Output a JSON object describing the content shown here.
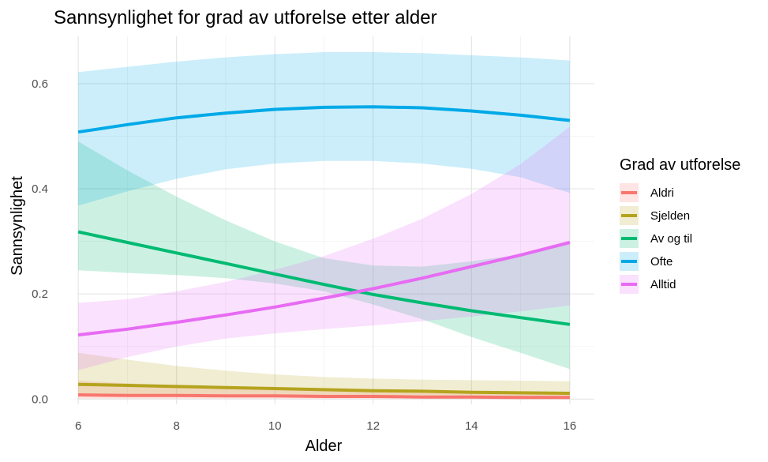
{
  "chart_data": {
    "type": "line",
    "title": "Sannsynlighet for grad av utforelse etter alder",
    "xlabel": "Alder",
    "ylabel": "Sannsynlighet",
    "xlim": [
      6,
      16
    ],
    "ylim": [
      -0.01,
      0.69
    ],
    "x_ticks": [
      6,
      8,
      10,
      12,
      14,
      16
    ],
    "y_ticks": [
      0.0,
      0.2,
      0.4,
      0.6
    ],
    "y_tick_labels": [
      "0.0",
      "0.2",
      "0.4",
      "0.6"
    ],
    "grid": true,
    "legend": {
      "title": "Grad av utforelse",
      "position": "right"
    },
    "x": [
      6,
      7,
      8,
      9,
      10,
      11,
      12,
      13,
      14,
      15,
      16
    ],
    "series": [
      {
        "name": "Aldri",
        "color": "#F8766D",
        "values": [
          0.008,
          0.007,
          0.007,
          0.006,
          0.006,
          0.005,
          0.005,
          0.004,
          0.004,
          0.003,
          0.003
        ],
        "lower": [
          0.001,
          0.001,
          0.001,
          0.001,
          0.001,
          0.001,
          0.001,
          0.001,
          0.001,
          0.001,
          0.0
        ],
        "upper": [
          0.035,
          0.03,
          0.026,
          0.022,
          0.02,
          0.018,
          0.016,
          0.015,
          0.014,
          0.013,
          0.012
        ]
      },
      {
        "name": "Sjelden",
        "color": "#B5A31E",
        "values": [
          0.028,
          0.026,
          0.024,
          0.022,
          0.02,
          0.018,
          0.016,
          0.015,
          0.013,
          0.012,
          0.011
        ],
        "lower": [
          0.008,
          0.008,
          0.008,
          0.008,
          0.008,
          0.007,
          0.006,
          0.005,
          0.004,
          0.003,
          0.002
        ],
        "upper": [
          0.088,
          0.075,
          0.063,
          0.054,
          0.047,
          0.042,
          0.039,
          0.037,
          0.036,
          0.035,
          0.034
        ]
      },
      {
        "name": "Av og til",
        "color": "#00BA72",
        "values": [
          0.318,
          0.298,
          0.278,
          0.258,
          0.238,
          0.218,
          0.199,
          0.183,
          0.168,
          0.155,
          0.142
        ],
        "lower": [
          0.245,
          0.24,
          0.236,
          0.23,
          0.22,
          0.205,
          0.18,
          0.152,
          0.118,
          0.088,
          0.057
        ],
        "upper": [
          0.49,
          0.435,
          0.385,
          0.34,
          0.3,
          0.268,
          0.254,
          0.252,
          0.262,
          0.275,
          0.295
        ]
      },
      {
        "name": "Ofte",
        "color": "#00A9E7",
        "values": [
          0.508,
          0.522,
          0.535,
          0.544,
          0.551,
          0.555,
          0.556,
          0.554,
          0.548,
          0.54,
          0.53
        ],
        "lower": [
          0.368,
          0.395,
          0.419,
          0.437,
          0.448,
          0.453,
          0.453,
          0.448,
          0.438,
          0.422,
          0.392
        ],
        "upper": [
          0.622,
          0.632,
          0.642,
          0.65,
          0.656,
          0.66,
          0.66,
          0.658,
          0.654,
          0.65,
          0.644
        ]
      },
      {
        "name": "Alltid",
        "color": "#E76BF3",
        "values": [
          0.122,
          0.133,
          0.146,
          0.16,
          0.175,
          0.192,
          0.21,
          0.23,
          0.252,
          0.274,
          0.298
        ],
        "lower": [
          0.055,
          0.08,
          0.1,
          0.115,
          0.125,
          0.133,
          0.14,
          0.148,
          0.157,
          0.167,
          0.178
        ],
        "upper": [
          0.183,
          0.19,
          0.205,
          0.223,
          0.246,
          0.272,
          0.305,
          0.343,
          0.39,
          0.447,
          0.518
        ]
      }
    ]
  }
}
